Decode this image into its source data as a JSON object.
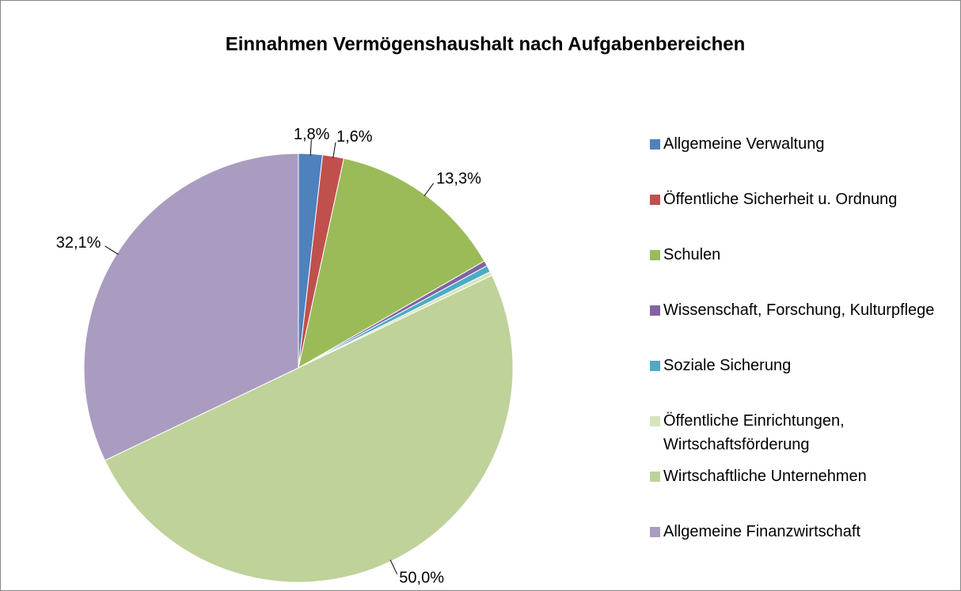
{
  "chart_data": {
    "type": "pie",
    "title": "Einnahmen Vermögenshaushalt nach Aufgabenbereichen",
    "categories": [
      "Allgemeine Verwaltung",
      "Öffentliche Sicherheit u. Ordnung",
      "Schulen",
      "Wissenschaft, Forschung, Kulturpflege",
      "Soziale Sicherung",
      "Öffentliche Einrichtungen, Wirtschaftsförderung",
      "Wirtschaftliche Unternehmen",
      "Allgemeine Finanzwirtschaft"
    ],
    "values": [
      1.8,
      1.6,
      13.3,
      0.4,
      0.5,
      0.3,
      50.0,
      32.1
    ],
    "value_labels": [
      "1,8%",
      "1,6%",
      "13,3%",
      null,
      null,
      null,
      "50,0%",
      "32,1%"
    ],
    "colors": [
      "#4f81bd",
      "#c0504d",
      "#9bbb59",
      "#8064a2",
      "#4bacc6",
      "#d7e4bd",
      "#bfd29a",
      "#aa9cc0"
    ],
    "legend": "right"
  }
}
